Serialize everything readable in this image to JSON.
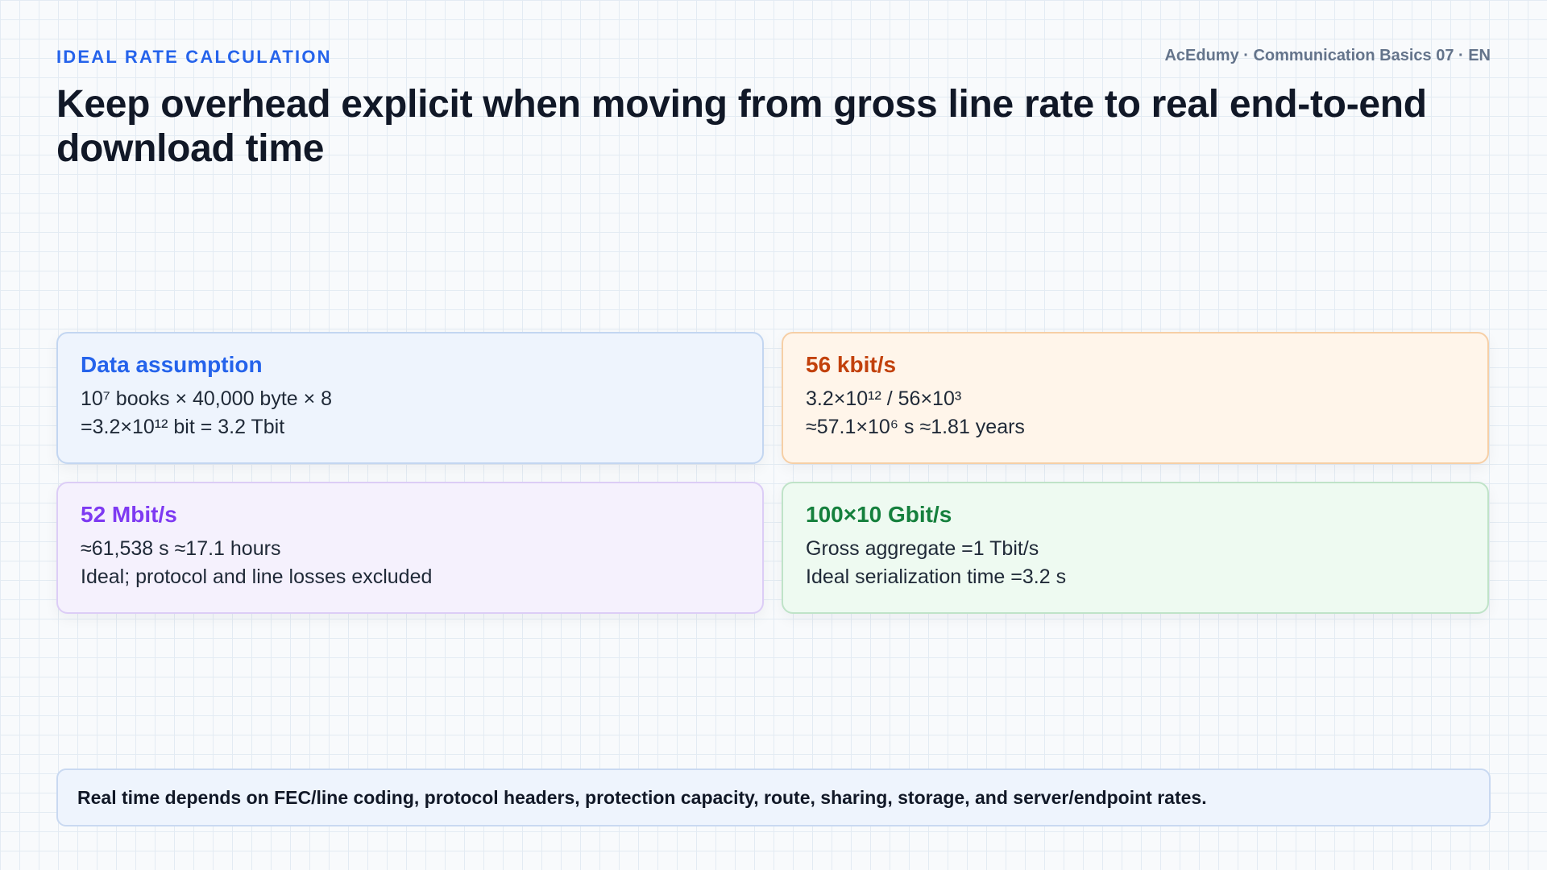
{
  "header": {
    "eyebrow": "IDEAL RATE CALCULATION",
    "meta": "AcEdumy · Communication Basics 07 · EN",
    "title": "Keep overhead explicit when moving from gross line rate to real end-to-end download time"
  },
  "cards": [
    {
      "title": "Data assumption",
      "line1": "10⁷ books × 40,000 byte × 8",
      "line2": "=3.2×10¹² bit = 3.2 Tbit",
      "accent": "#2563eb"
    },
    {
      "title": "56 kbit/s",
      "line1": "3.2×10¹² / 56×10³",
      "line2": "≈57.1×10⁶ s ≈1.81 years",
      "accent": "#c2410c"
    },
    {
      "title": "52 Mbit/s",
      "line1": "≈61,538 s ≈17.1 hours",
      "line2": "Ideal; protocol and line losses excluded",
      "accent": "#7e3af2"
    },
    {
      "title": "100×10 Gbit/s",
      "line1": "Gross aggregate =1 Tbit/s",
      "line2": "Ideal serialization time =3.2 s",
      "accent": "#15803d"
    }
  ],
  "note": {
    "text": "Real time depends on FEC/line coding, protocol headers, protection capacity, route, sharing, storage, and server/endpoint rates."
  }
}
